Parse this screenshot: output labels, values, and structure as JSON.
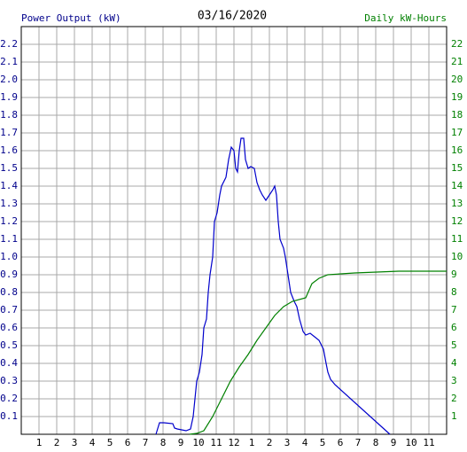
{
  "chart_data": {
    "type": "line",
    "title": "03/16/2020",
    "ylabel": "Power Output (kW)",
    "y2label": "Daily kW-Hours",
    "xlim": [
      0,
      24
    ],
    "xticks": [
      1,
      2,
      3,
      4,
      5,
      6,
      7,
      8,
      9,
      10,
      11,
      12,
      {
        "value": 13,
        "label": "1"
      },
      {
        "value": 14,
        "label": "2"
      },
      {
        "value": 15,
        "label": "3"
      },
      {
        "value": 16,
        "label": "4"
      },
      {
        "value": 17,
        "label": "5"
      },
      {
        "value": 18,
        "label": "6"
      },
      {
        "value": 19,
        "label": "7"
      },
      {
        "value": 20,
        "label": "8"
      },
      {
        "value": 21,
        "label": "9"
      },
      {
        "value": 22,
        "label": "10"
      },
      {
        "value": 23,
        "label": "11"
      }
    ],
    "ylim": [
      0,
      2.3
    ],
    "yticks": [
      0.1,
      0.2,
      0.3,
      0.4,
      0.5,
      0.6,
      0.7,
      0.8,
      0.9,
      {
        "value": 1,
        "label": "1.0"
      },
      1.1,
      1.2,
      1.3,
      1.4,
      1.5,
      1.6,
      1.7,
      1.8,
      1.9,
      {
        "value": 2,
        "label": "2.0"
      },
      2.1,
      2.2
    ],
    "y2lim": [
      0,
      23
    ],
    "y2ticks": [
      1,
      2,
      3,
      4,
      5,
      6,
      7,
      8,
      9,
      10,
      11,
      12,
      13,
      14,
      15,
      16,
      17,
      18,
      19,
      20,
      21,
      22
    ],
    "grid": true,
    "ylabel_color": "#00008b",
    "y2label_color": "#008000",
    "series": [
      {
        "color": "#0000cc",
        "x": [
          7.6,
          7.8,
          8.05,
          8.55,
          8.65,
          8.8,
          9.3,
          9.55,
          9.7,
          9.8,
          9.9,
          10.05,
          10.2,
          10.3,
          10.45,
          10.55,
          10.65,
          10.8,
          10.9,
          11.05,
          11.2,
          11.3,
          11.55,
          11.7,
          11.85,
          12.0,
          12.1,
          12.2,
          12.3,
          12.4,
          12.55,
          12.65,
          12.8,
          12.95,
          13.15,
          13.3,
          13.45,
          13.6,
          13.8,
          14.0,
          14.2,
          14.3,
          14.4,
          14.5,
          14.6,
          14.8,
          14.9,
          15.05,
          15.2,
          15.4,
          15.55,
          15.7,
          15.9,
          16.05,
          16.3,
          16.55,
          16.8,
          17.05,
          17.2,
          17.3,
          17.45,
          17.7,
          20.8
        ],
        "values": [
          0,
          0.065,
          0.065,
          0.06,
          0.035,
          0.03,
          0.02,
          0.03,
          0.1,
          0.2,
          0.3,
          0.35,
          0.45,
          0.6,
          0.65,
          0.8,
          0.9,
          1.0,
          1.2,
          1.25,
          1.35,
          1.4,
          1.45,
          1.55,
          1.62,
          1.6,
          1.5,
          1.48,
          1.6,
          1.67,
          1.67,
          1.55,
          1.5,
          1.51,
          1.5,
          1.42,
          1.38,
          1.35,
          1.32,
          1.35,
          1.38,
          1.4,
          1.35,
          1.2,
          1.1,
          1.05,
          1.0,
          0.9,
          0.8,
          0.75,
          0.72,
          0.65,
          0.58,
          0.56,
          0.57,
          0.55,
          0.53,
          0.48,
          0.4,
          0.35,
          0.31,
          0.28,
          0
        ]
      },
      {
        "color": "#008000",
        "axis": "y2",
        "x": [
          9.5,
          9.9,
          10.3,
          10.8,
          11.3,
          11.8,
          12.3,
          12.8,
          13.3,
          13.8,
          14.3,
          14.8,
          15.3,
          16.05,
          16.4,
          16.8,
          17.3,
          18.8,
          21.3,
          24
        ],
        "values": [
          0,
          0.05,
          0.2,
          1.0,
          2.0,
          3.0,
          3.8,
          4.5,
          5.3,
          6.0,
          6.7,
          7.2,
          7.5,
          7.7,
          8.5,
          8.8,
          9.0,
          9.1,
          9.2,
          9.2
        ]
      }
    ]
  }
}
